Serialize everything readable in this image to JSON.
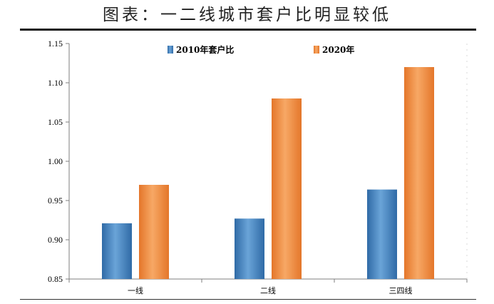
{
  "header": {
    "title": "图表：一二线城市套户比明显较低"
  },
  "chart_data": {
    "type": "bar",
    "categories": [
      "一线",
      "二线",
      "三四线"
    ],
    "series": [
      {
        "name": "2010年套户比",
        "values": [
          0.921,
          0.927,
          0.964
        ],
        "color": "#3f82bf"
      },
      {
        "name": "2020年",
        "values": [
          0.97,
          1.08,
          1.12
        ],
        "color": "#f08a3c"
      }
    ],
    "ylim": [
      0.85,
      1.15
    ],
    "yticks": [
      "0.85",
      "0.90",
      "0.95",
      "1.00",
      "1.05",
      "1.10",
      "1.15"
    ],
    "legend_position": "top-center",
    "grid": false
  }
}
